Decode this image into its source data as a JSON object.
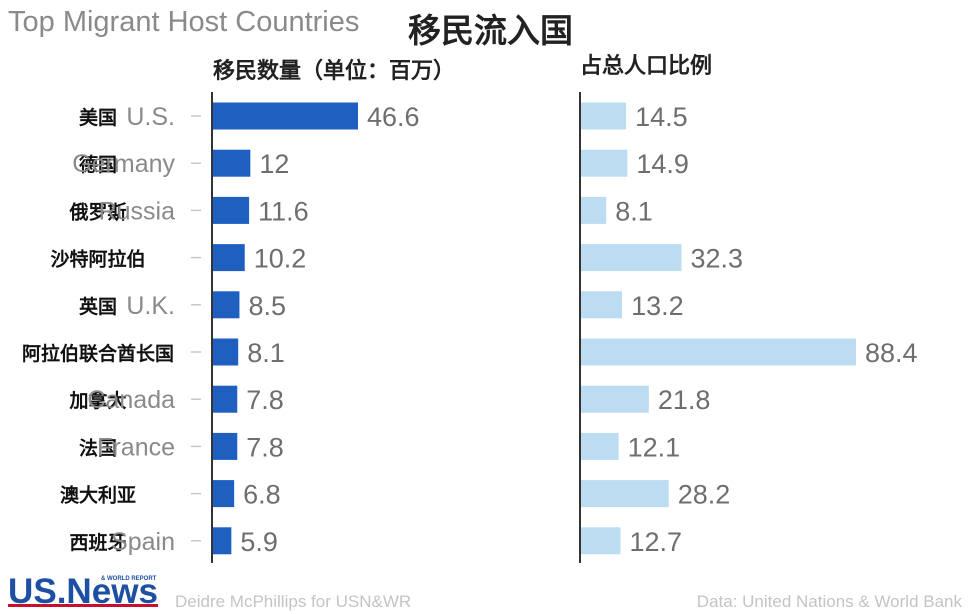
{
  "title_en": "Top Migrant Host Countries",
  "title_zh": "移民流入国",
  "subtitle_left": "移民数量（单位：百万）",
  "subtitle_right": "占总人口比例",
  "logo_text": "U.S.News & WORLD REPORT",
  "credit_left": "Deidre McPhillips for USN&WR",
  "credit_right": "Data: United Nations & World Bank",
  "colors": {
    "migrants_bar": "#1f5fbf",
    "share_bar": "#bcdcf2",
    "axis_line": "#333333",
    "value_label": "#6e6e6e",
    "country_en": "#8a8a8a",
    "country_zh": "#111111"
  },
  "chart_data": [
    {
      "type": "bar",
      "orientation": "horizontal",
      "title": "移民数量（单位：百万）",
      "categories_zh": [
        "美国",
        "德国",
        "俄罗斯",
        "沙特阿拉伯",
        "英国",
        "阿拉伯联合酋长国",
        "加拿大",
        "法国",
        "澳大利亚",
        "西班牙"
      ],
      "categories_en": [
        "U.S.",
        "Germany",
        "Russia",
        "",
        "U.K.",
        "",
        "Canada",
        "France",
        "",
        "Spain"
      ],
      "values": [
        46.6,
        12,
        11.6,
        10.2,
        8.5,
        8.1,
        7.8,
        7.8,
        6.8,
        5.9
      ],
      "value_labels": [
        "46.6",
        "12",
        "11.6",
        "10.2",
        "8.5",
        "8.1",
        "7.8",
        "7.8",
        "6.8",
        "5.9"
      ],
      "xlim": [
        0,
        46.6
      ]
    },
    {
      "type": "bar",
      "orientation": "horizontal",
      "title": "占总人口比例",
      "categories_zh": [
        "美国",
        "德国",
        "俄罗斯",
        "沙特阿拉伯",
        "英国",
        "阿拉伯联合酋长国",
        "加拿大",
        "法国",
        "澳大利亚",
        "西班牙"
      ],
      "values": [
        14.5,
        14.9,
        8.1,
        32.3,
        13.2,
        88.4,
        21.8,
        12.1,
        28.2,
        12.7
      ],
      "value_labels": [
        "14.5",
        "14.9",
        "8.1",
        "32.3",
        "13.2",
        "88.4",
        "21.8",
        "12.1",
        "28.2",
        "12.7"
      ],
      "xlim": [
        0,
        88.4
      ]
    }
  ]
}
